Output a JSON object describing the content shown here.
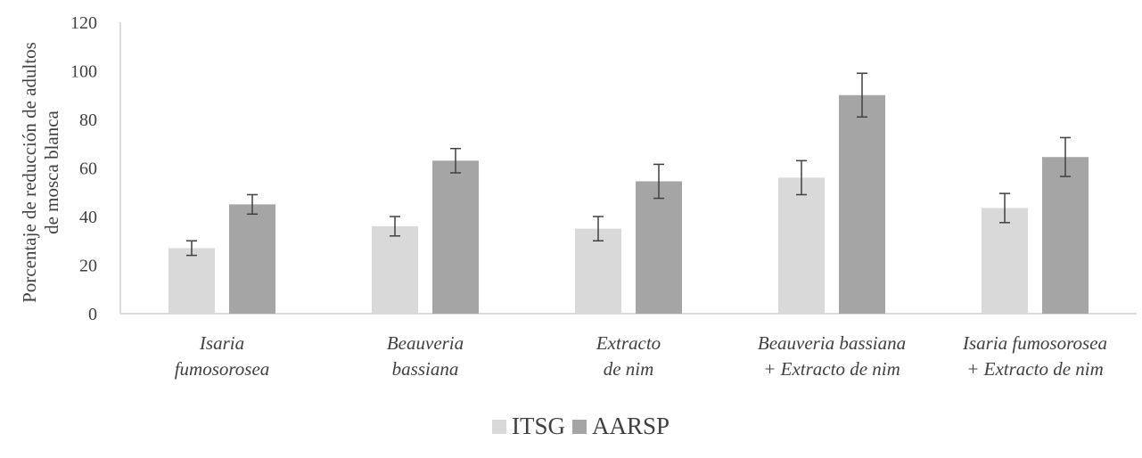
{
  "chart_data": {
    "type": "bar",
    "title": "",
    "ylabel_lines": [
      "Porcentaje  de reducción de adultos",
      "de mosca blanca"
    ],
    "ylim": [
      0,
      120
    ],
    "yticks": [
      0,
      20,
      40,
      60,
      80,
      100,
      120
    ],
    "grid": false,
    "legend_position": "bottom",
    "categories": [
      [
        "Isaria",
        "fumosorosea"
      ],
      [
        "Beauveria",
        "bassiana"
      ],
      [
        "Extracto",
        "de nim"
      ],
      [
        "Beauveria bassiana",
        "+  Extracto de nim"
      ],
      [
        "Isaria fumosorosea",
        "+ Extracto de nim"
      ]
    ],
    "series": [
      {
        "name": "ITSG",
        "color": "#d9d9d9",
        "values": [
          27,
          36,
          35,
          56,
          43.5
        ],
        "errors": [
          3,
          4,
          5,
          7,
          6
        ]
      },
      {
        "name": "AARSP",
        "color": "#a5a5a5",
        "values": [
          45,
          63,
          54.5,
          90,
          64.5
        ],
        "errors": [
          4,
          5,
          7,
          9,
          8
        ]
      }
    ]
  }
}
